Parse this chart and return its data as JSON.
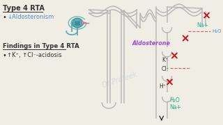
{
  "bg_color": "#f0ede5",
  "title": "Type 4 RTA",
  "bullet1_label": "↓Aldosteronism",
  "findings_title": "Findings in Type 4 RTA",
  "bullet2_label": "↑K⁺, ↑Cl⁻-acidosis",
  "aldosterone_label": "Aldosterone",
  "na_label": "Na+",
  "h2o_label": "H₂O",
  "k_label": "K⁺",
  "cl_label": "Cl⁻",
  "h_label": "H⁺",
  "h2o2_label": "H₂O",
  "na2_label": "Na+",
  "watermark": "Dr Prateek",
  "tubule_color": "#b8b8b8",
  "text_purple": "#9b4dca",
  "text_teal": "#2ab08a",
  "text_blue": "#4a90c0",
  "text_dark": "#333333",
  "x_color": "#cc1111",
  "dashed_pink": "#d86060",
  "glom_teal": "#5aacb8",
  "vessel_pink": "#c07888"
}
